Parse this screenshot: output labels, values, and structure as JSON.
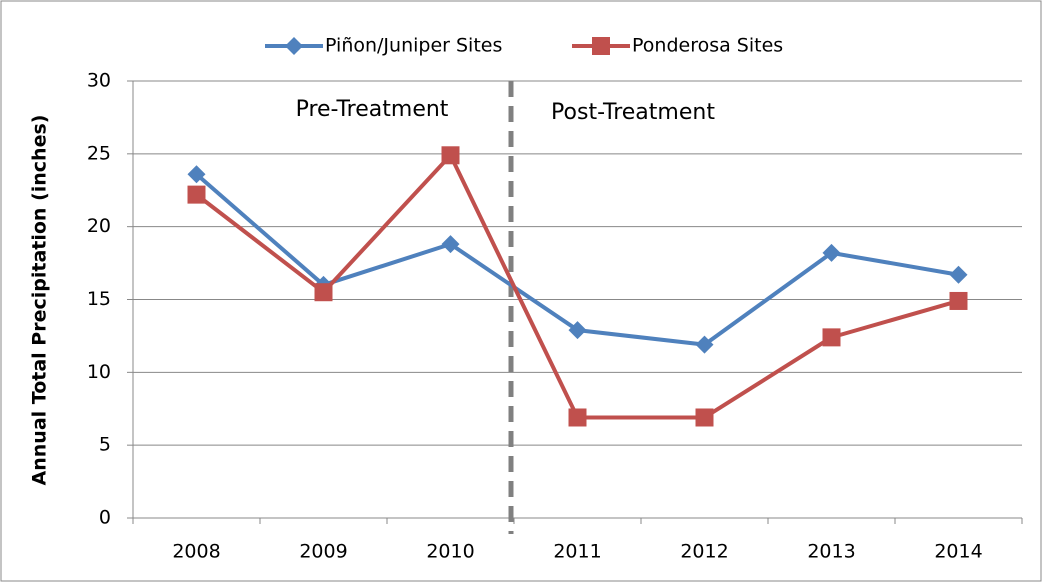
{
  "chart_data": {
    "type": "line",
    "categories": [
      "2008",
      "2009",
      "2010",
      "2011",
      "2012",
      "2013",
      "2014"
    ],
    "series": [
      {
        "name": "Piñon/Juniper Sites",
        "color": "#4f81bd",
        "marker": "diamond",
        "values": [
          23.6,
          16.0,
          18.8,
          12.9,
          11.9,
          18.2,
          16.7
        ]
      },
      {
        "name": "Ponderosa Sites",
        "color": "#c0504d",
        "marker": "square",
        "values": [
          22.2,
          15.5,
          24.9,
          6.9,
          6.9,
          12.4,
          14.9
        ]
      }
    ],
    "y_label": "Annual Total Precipitation (inches)",
    "annotations": [
      "Pre-Treatment",
      "Post-Treatment"
    ],
    "ylim": [
      0,
      30
    ],
    "yticks": [
      0,
      5,
      10,
      15,
      20,
      25,
      30
    ],
    "grid": true,
    "legend": "top"
  }
}
